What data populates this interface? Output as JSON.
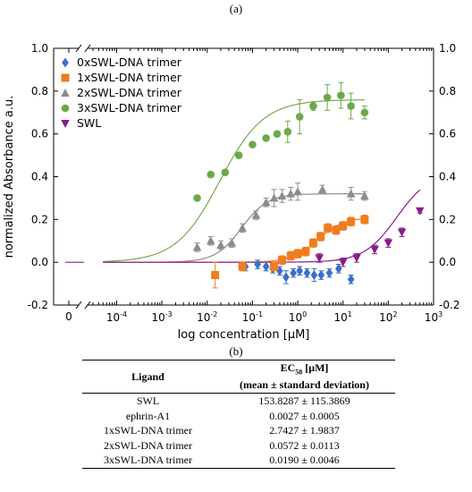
{
  "figure": {
    "panel_a_label": "(a)",
    "panel_b_label": "(b)"
  },
  "chart_data": {
    "type": "scatter",
    "xlabel": "log concentration [μM]",
    "ylabel": "normalized Absorbance a.u.",
    "x_scale": "log",
    "x_zero_tick": "0",
    "xlim": [
      3e-05,
      1000
    ],
    "ylim": [
      -0.2,
      1.0
    ],
    "x_ticks": [
      {
        "value": 0.0001,
        "base": "10",
        "exp": "-4"
      },
      {
        "value": 0.001,
        "base": "10",
        "exp": "-3"
      },
      {
        "value": 0.01,
        "base": "10",
        "exp": "-2"
      },
      {
        "value": 0.1,
        "base": "10",
        "exp": "-1"
      },
      {
        "value": 1,
        "base": "10",
        "exp": "0"
      },
      {
        "value": 10,
        "base": "10",
        "exp": "1"
      },
      {
        "value": 100,
        "base": "10",
        "exp": "2"
      },
      {
        "value": 1000,
        "base": "10",
        "exp": "3"
      }
    ],
    "y_ticks": [
      "-0.2",
      "0.0",
      "0.2",
      "0.4",
      "0.6",
      "0.8",
      "1.0"
    ],
    "y_tick_values": [
      -0.2,
      0.0,
      0.2,
      0.4,
      0.6,
      0.8,
      1.0
    ],
    "grid": false,
    "legend_position": "top-left",
    "series": [
      {
        "name": "0xSWL-DNA trimer",
        "marker": "diamond",
        "color": "#3b6ec9",
        "x": [
          0.07,
          0.13,
          0.2,
          0.28,
          0.4,
          0.55,
          0.8,
          1.1,
          1.6,
          2.3,
          3.3,
          5,
          8,
          15
        ],
        "y": [
          -0.02,
          -0.01,
          -0.02,
          -0.03,
          -0.04,
          -0.07,
          -0.05,
          -0.04,
          -0.05,
          -0.06,
          -0.06,
          -0.05,
          -0.03,
          -0.08
        ],
        "err": [
          0.02,
          0.02,
          0.02,
          0.02,
          0.02,
          0.03,
          0.02,
          0.02,
          0.02,
          0.03,
          0.02,
          0.02,
          0.02,
          0.02
        ]
      },
      {
        "name": "1xSWL-DNA trimer",
        "marker": "square",
        "color": "#f07d1e",
        "x": [
          0.015,
          0.06,
          0.3,
          0.45,
          0.7,
          1.0,
          1.5,
          2.2,
          3.2,
          4.6,
          7,
          10,
          15,
          30
        ],
        "y": [
          -0.06,
          -0.02,
          -0.02,
          0.01,
          0.03,
          0.04,
          0.05,
          0.09,
          0.12,
          0.16,
          0.15,
          0.17,
          0.19,
          0.2
        ],
        "err": [
          0.06,
          0.02,
          0.02,
          0.02,
          0.02,
          0.02,
          0.02,
          0.02,
          0.02,
          0.02,
          0.02,
          0.02,
          0.02,
          0.02
        ]
      },
      {
        "name": "2xSWL-DNA trimer",
        "marker": "triangle-up",
        "color": "#8c8c8c",
        "x": [
          0.006,
          0.012,
          0.02,
          0.035,
          0.06,
          0.12,
          0.2,
          0.3,
          0.45,
          0.7,
          1.0,
          3.5,
          15,
          30
        ],
        "y": [
          0.07,
          0.1,
          0.08,
          0.09,
          0.16,
          0.22,
          0.28,
          0.3,
          0.31,
          0.32,
          0.33,
          0.34,
          0.32,
          0.31
        ],
        "err": [
          0.02,
          0.02,
          0.02,
          0.02,
          0.02,
          0.02,
          0.02,
          0.04,
          0.03,
          0.03,
          0.04,
          0.02,
          0.03,
          0.02
        ]
      },
      {
        "name": "3xSWL-DNA trimer",
        "marker": "circle",
        "color": "#6ea84a",
        "x": [
          0.006,
          0.012,
          0.025,
          0.05,
          0.1,
          0.2,
          0.35,
          0.6,
          1.1,
          2.2,
          4.5,
          9,
          15,
          30
        ],
        "y": [
          0.3,
          0.41,
          0.42,
          0.5,
          0.55,
          0.58,
          0.6,
          0.61,
          0.68,
          0.73,
          0.77,
          0.78,
          0.73,
          0.7
        ],
        "err": [
          0.01,
          0.01,
          0.01,
          0.01,
          0.01,
          0.01,
          0.01,
          0.05,
          0.08,
          0.02,
          0.06,
          0.06,
          0.06,
          0.03
        ]
      },
      {
        "name": "SWL",
        "marker": "triangle-down",
        "color": "#8b1a8f",
        "x": [
          3,
          10,
          20,
          50,
          100,
          200,
          500
        ],
        "y": [
          0.02,
          0.0,
          0.02,
          0.06,
          0.09,
          0.14,
          0.24
        ],
        "err": [
          0.02,
          0.02,
          0.02,
          0.02,
          0.02,
          0.02,
          0.01
        ]
      }
    ],
    "fit_curves": [
      {
        "series": "3xSWL-DNA trimer",
        "color": "#7aa850",
        "bottom": 0.0,
        "top": 0.76,
        "ec50": 0.019,
        "hill": 0.9,
        "x_start": 5e-05,
        "x_end": 30
      },
      {
        "series": "2xSWL-DNA trimer",
        "color": "#8c8c8c",
        "bottom": 0.0,
        "top": 0.32,
        "ec50": 0.0572,
        "hill": 1.5,
        "x_start": 5e-05,
        "x_end": 30
      },
      {
        "series": "1xSWL-DNA trimer",
        "color": "#f07d1e",
        "bottom": 0.0,
        "top": 0.21,
        "ec50": 2.7427,
        "hill": 1.5,
        "x_start": 5e-05,
        "x_end": 30
      },
      {
        "series": "SWL",
        "color": "#8b1a8f",
        "bottom": 0.0,
        "top": 0.42,
        "ec50": 153.8287,
        "hill": 1.2,
        "x_start": 5e-05,
        "x_end": 500
      }
    ]
  },
  "table": {
    "header_col1": "Ligand",
    "header_col2_line1": "EC",
    "header_col2_sub": "50",
    "header_col2_line1_rest": " [μM]",
    "header_col2_line2": "(mean ± standard deviation)",
    "rows": [
      {
        "ligand": "SWL",
        "ec50": "153.8287 ± 115.3869"
      },
      {
        "ligand": "ephrin-A1",
        "ec50": "0.0027 ± 0.0005"
      },
      {
        "ligand": "1xSWL-DNA trimer",
        "ec50": "2.7427 ± 1.9837"
      },
      {
        "ligand": "2xSWL-DNA trimer",
        "ec50": "0.0572 ± 0.0113"
      },
      {
        "ligand": "3xSWL-DNA trimer",
        "ec50": "0.0190 ± 0.0046"
      }
    ]
  }
}
